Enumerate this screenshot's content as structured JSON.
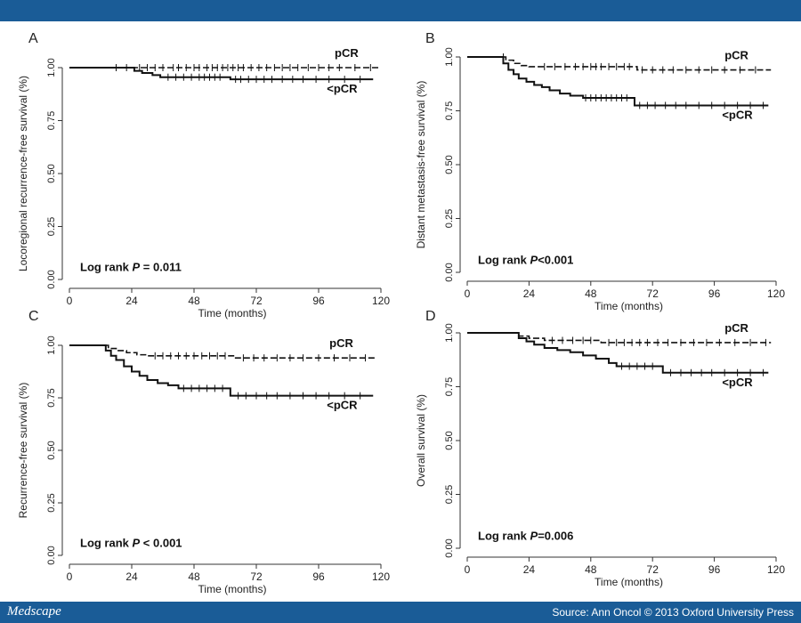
{
  "header": {
    "accent_color": "#1a5c97"
  },
  "footer": {
    "brand": "Medscape",
    "source": "Source: Ann Oncol © 2013 Oxford University Press"
  },
  "chart_data": [
    {
      "panel": "A",
      "type": "line",
      "ylabel": "Locoregional recurrence-free survival (%)",
      "xlabel": "Time (months)",
      "xlim": [
        0,
        120
      ],
      "ylim": [
        0,
        1
      ],
      "xticks": [
        "0",
        "24",
        "48",
        "72",
        "96",
        "120"
      ],
      "yticks": [
        "0.00",
        "0.25",
        "0.50",
        "0.75",
        "1.00"
      ],
      "annotation_prefix": "Log rank ",
      "annotation_p": "P",
      "annotation_suffix": " = 0.011",
      "series": [
        {
          "name": "pCR",
          "style": "dashed",
          "x": [
            0,
            120
          ],
          "y": [
            1.0,
            1.0
          ],
          "censor": [
            18,
            22,
            27,
            30,
            33,
            36,
            40,
            42,
            45,
            48,
            50,
            53,
            55,
            57,
            59,
            61,
            63,
            65,
            67,
            70,
            73,
            76,
            79,
            82,
            85,
            88,
            92,
            96,
            100,
            104,
            110,
            116
          ]
        },
        {
          "name": "<pCR",
          "style": "solid",
          "x": [
            0,
            20,
            25,
            28,
            32,
            35,
            60,
            62,
            117
          ],
          "y": [
            1.0,
            1.0,
            0.985,
            0.975,
            0.965,
            0.955,
            0.955,
            0.945,
            0.945
          ],
          "censor": [
            38,
            41,
            44,
            47,
            50,
            52,
            54,
            56,
            58,
            64,
            66,
            69,
            72,
            75,
            78,
            82,
            86,
            90,
            95,
            100,
            106,
            112
          ]
        }
      ]
    },
    {
      "panel": "B",
      "type": "line",
      "ylabel": "Distant metastasis-free survival (%)",
      "xlabel": "Time (months)",
      "xlim": [
        0,
        120
      ],
      "ylim": [
        0,
        1
      ],
      "xticks": [
        "0",
        "24",
        "48",
        "72",
        "96",
        "120"
      ],
      "yticks": [
        "0.00",
        "0.25",
        "0.50",
        "0.75",
        "1.00"
      ],
      "annotation_prefix": "Log rank ",
      "annotation_p": "P",
      "annotation_suffix": "<0.001",
      "series": [
        {
          "name": "pCR",
          "style": "dashed",
          "x": [
            0,
            12,
            15,
            18,
            21,
            24,
            64,
            66,
            118
          ],
          "y": [
            1.0,
            1.0,
            0.985,
            0.97,
            0.96,
            0.955,
            0.955,
            0.94,
            0.94
          ],
          "censor": [
            14,
            30,
            34,
            38,
            42,
            45,
            48,
            50,
            52,
            55,
            58,
            61,
            63,
            68,
            72,
            76,
            80,
            85,
            90,
            95,
            100,
            106,
            112
          ]
        },
        {
          "name": "<pCR",
          "style": "solid",
          "x": [
            0,
            12,
            14,
            16,
            18,
            20,
            23,
            26,
            29,
            32,
            36,
            40,
            45,
            64,
            65,
            117
          ],
          "y": [
            1.0,
            1.0,
            0.97,
            0.94,
            0.92,
            0.9,
            0.885,
            0.87,
            0.86,
            0.845,
            0.83,
            0.82,
            0.81,
            0.81,
            0.775,
            0.775
          ],
          "censor": [
            46,
            48,
            50,
            52,
            54,
            56,
            58,
            60,
            62,
            67,
            70,
            73,
            77,
            81,
            85,
            90,
            95,
            100,
            105,
            110,
            115
          ]
        }
      ]
    },
    {
      "panel": "C",
      "type": "line",
      "ylabel": "Recurrence-free survival (%)",
      "xlabel": "Time (months)",
      "xlim": [
        0,
        120
      ],
      "ylim": [
        0,
        1
      ],
      "xticks": [
        "0",
        "24",
        "48",
        "72",
        "96",
        "120"
      ],
      "yticks": [
        "0.00",
        "0.25",
        "0.50",
        "0.75",
        "1.00"
      ],
      "annotation_prefix": "Log rank ",
      "annotation_p": "P",
      "annotation_suffix": " < 0.001",
      "series": [
        {
          "name": "pCR",
          "style": "dashed",
          "x": [
            0,
            12,
            15,
            18,
            22,
            26,
            30,
            62,
            64,
            118
          ],
          "y": [
            1.0,
            1.0,
            0.985,
            0.975,
            0.965,
            0.955,
            0.95,
            0.95,
            0.94,
            0.94
          ],
          "censor": [
            33,
            36,
            39,
            42,
            45,
            48,
            51,
            54,
            57,
            60,
            67,
            71,
            75,
            80,
            85,
            90,
            96,
            102,
            108,
            114
          ]
        },
        {
          "name": "<pCR",
          "style": "solid",
          "x": [
            0,
            12,
            14,
            16,
            18,
            21,
            24,
            27,
            30,
            34,
            38,
            42,
            60,
            62,
            117
          ],
          "y": [
            1.0,
            1.0,
            0.975,
            0.95,
            0.93,
            0.9,
            0.875,
            0.855,
            0.835,
            0.82,
            0.81,
            0.795,
            0.795,
            0.76,
            0.76
          ],
          "censor": [
            44,
            47,
            50,
            53,
            56,
            59,
            65,
            68,
            72,
            76,
            80,
            85,
            90,
            95,
            100,
            106,
            112
          ]
        }
      ]
    },
    {
      "panel": "D",
      "type": "line",
      "ylabel": "Overall survival (%)",
      "xlabel": "Time (months)",
      "xlim": [
        0,
        120
      ],
      "ylim": [
        0,
        1
      ],
      "xticks": [
        "0",
        "24",
        "48",
        "72",
        "96",
        "120"
      ],
      "yticks": [
        "0.00",
        "0.25",
        "0.50",
        "0.75",
        "1.00"
      ],
      "annotation_prefix": "Log rank ",
      "annotation_p": "P",
      "annotation_suffix": "=0.006",
      "series": [
        {
          "name": "pCR",
          "style": "dashed",
          "x": [
            0,
            18,
            20,
            24,
            30,
            50,
            52,
            118
          ],
          "y": [
            1.0,
            1.0,
            0.985,
            0.975,
            0.965,
            0.965,
            0.955,
            0.955
          ],
          "censor": [
            33,
            37,
            41,
            45,
            48,
            55,
            58,
            61,
            64,
            67,
            70,
            74,
            78,
            83,
            88,
            93,
            98,
            104,
            110,
            116
          ]
        },
        {
          "name": "<pCR",
          "style": "solid",
          "x": [
            0,
            18,
            20,
            23,
            26,
            30,
            35,
            40,
            45,
            50,
            55,
            58,
            75,
            76,
            117
          ],
          "y": [
            1.0,
            1.0,
            0.975,
            0.96,
            0.945,
            0.93,
            0.92,
            0.91,
            0.895,
            0.88,
            0.86,
            0.845,
            0.845,
            0.815,
            0.815
          ],
          "censor": [
            60,
            63,
            66,
            69,
            72,
            79,
            83,
            87,
            91,
            95,
            100,
            105,
            110,
            115
          ]
        }
      ]
    }
  ]
}
